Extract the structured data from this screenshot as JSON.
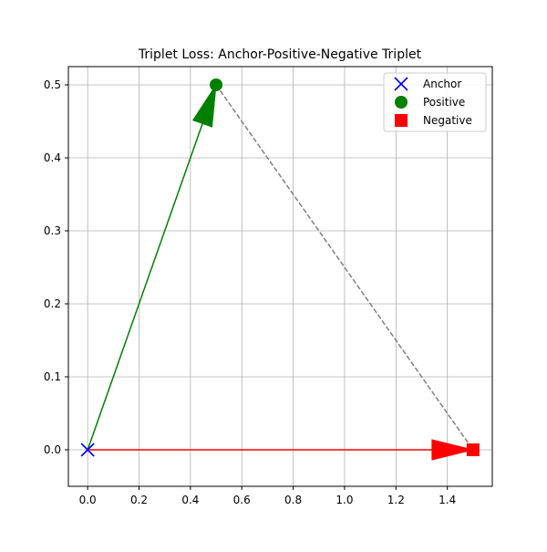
{
  "chart_data": {
    "type": "scatter",
    "title": "Triplet Loss: Anchor-Positive-Negative Triplet",
    "xlabel": "",
    "ylabel": "",
    "xlim": [
      -0.075,
      1.575
    ],
    "ylim": [
      -0.05,
      0.525
    ],
    "x_ticks": [
      0.0,
      0.2,
      0.4,
      0.6,
      0.8,
      1.0,
      1.2,
      1.4
    ],
    "x_tick_labels": [
      "0.0",
      "0.2",
      "0.4",
      "0.6",
      "0.8",
      "1.0",
      "1.2",
      "1.4"
    ],
    "y_ticks": [
      0.0,
      0.1,
      0.2,
      0.3,
      0.4,
      0.5
    ],
    "y_tick_labels": [
      "0.0",
      "0.1",
      "0.2",
      "0.3",
      "0.4",
      "0.5"
    ],
    "grid": true,
    "legend_position": "top-right",
    "series": [
      {
        "name": "Anchor",
        "marker": "x",
        "color": "#0000ff",
        "points": [
          {
            "x": 0.0,
            "y": 0.0
          }
        ]
      },
      {
        "name": "Positive",
        "marker": "circle",
        "color": "#008000",
        "points": [
          {
            "x": 0.5,
            "y": 0.5
          }
        ]
      },
      {
        "name": "Negative",
        "marker": "square",
        "color": "#ff0000",
        "points": [
          {
            "x": 1.5,
            "y": 0.0
          }
        ]
      }
    ],
    "arrows": [
      {
        "name": "anchor-to-positive",
        "from": [
          0.0,
          0.0
        ],
        "to": [
          0.5,
          0.5
        ],
        "color": "#008000"
      },
      {
        "name": "anchor-to-negative",
        "from": [
          0.0,
          0.0
        ],
        "to": [
          1.5,
          0.0
        ],
        "color": "#ff0000"
      }
    ],
    "lines": [
      {
        "name": "positive-to-negative",
        "from": [
          0.5,
          0.5
        ],
        "to": [
          1.5,
          0.0
        ],
        "color": "#808080",
        "style": "dashed"
      }
    ]
  }
}
